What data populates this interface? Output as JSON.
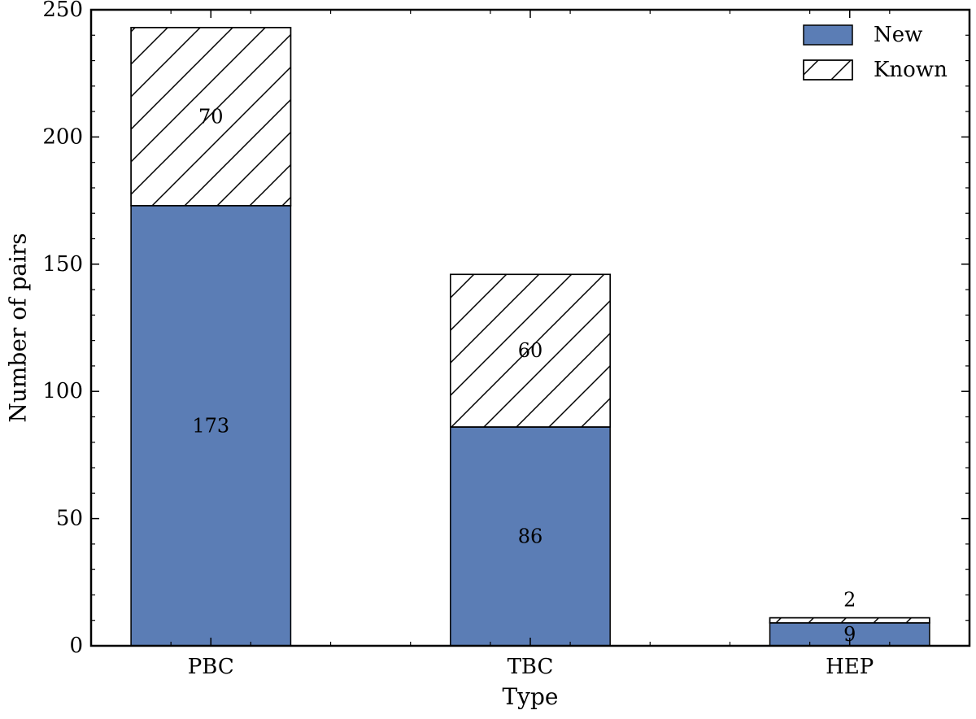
{
  "chart_data": {
    "type": "bar",
    "stacked": true,
    "categories": [
      "PBC",
      "TBC",
      "HEP"
    ],
    "series": [
      {
        "name": "New",
        "values": [
          173,
          86,
          9
        ],
        "color": "#5b7db5",
        "hatch": false
      },
      {
        "name": "Known",
        "values": [
          70,
          60,
          2
        ],
        "color": "#ffffff",
        "hatch": true
      }
    ],
    "xlabel": "Type",
    "ylabel": "Number of pairs",
    "ylim": [
      0,
      250
    ],
    "yticks": [
      0,
      50,
      100,
      150,
      200,
      250
    ],
    "grid": false,
    "legend": "top-right"
  }
}
